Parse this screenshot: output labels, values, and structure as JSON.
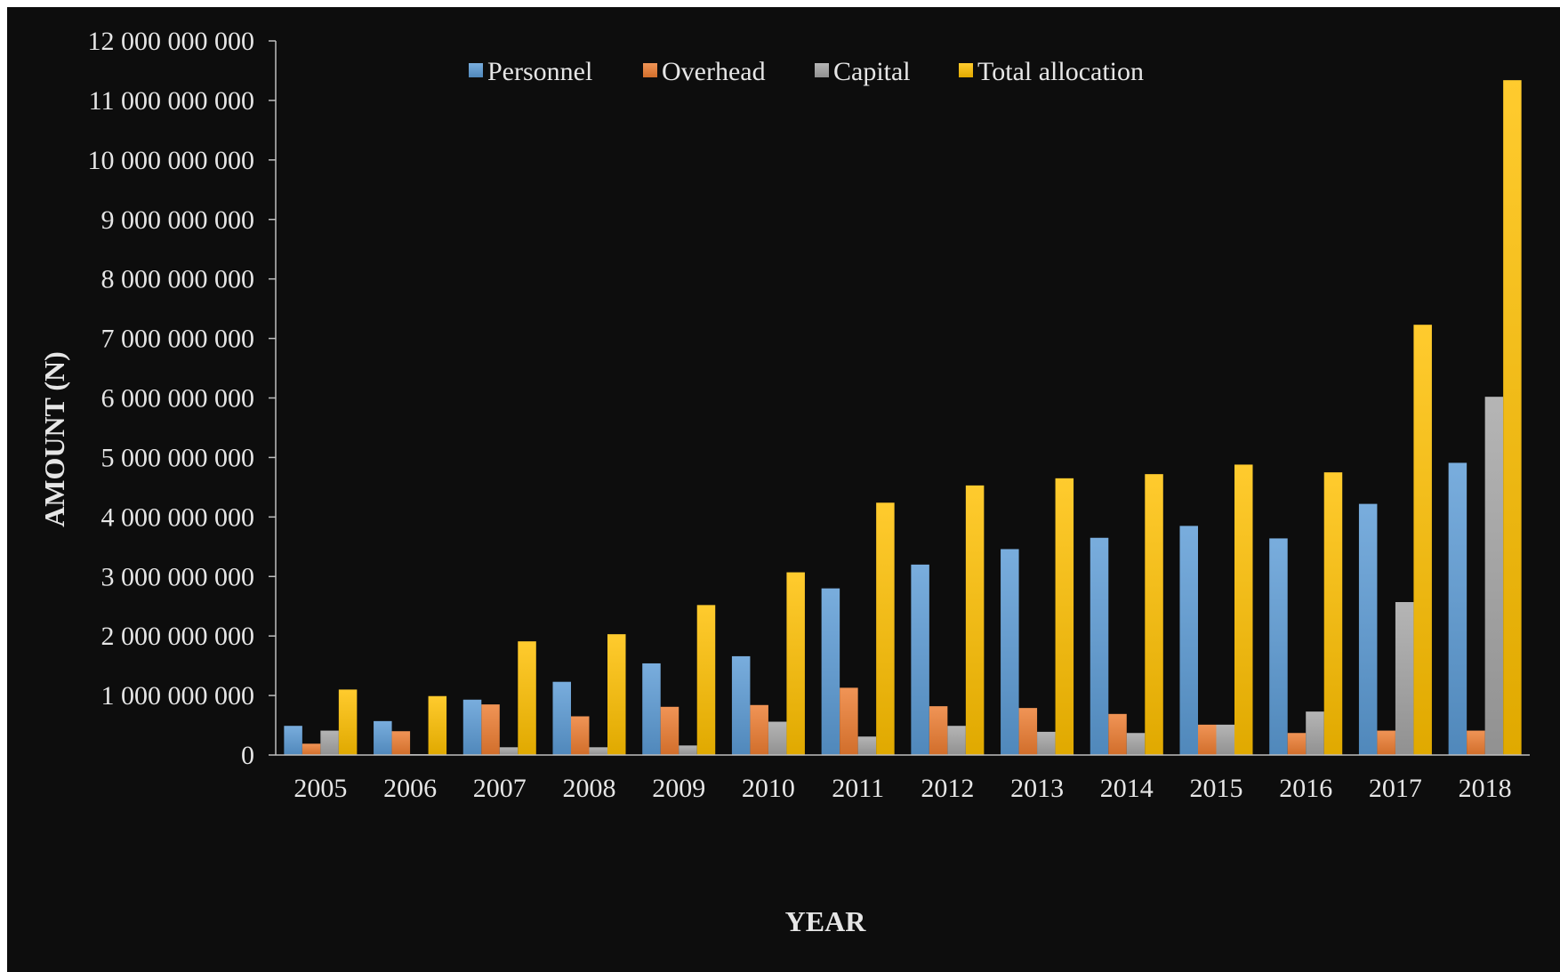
{
  "chart_data": {
    "type": "bar",
    "xlabel": "YEAR",
    "ylabel": "AMOUNT (N)",
    "ylim": [
      0,
      12000000000
    ],
    "y_ticks": [
      0,
      1000000000,
      2000000000,
      3000000000,
      4000000000,
      5000000000,
      6000000000,
      7000000000,
      8000000000,
      9000000000,
      10000000000,
      11000000000,
      12000000000
    ],
    "y_tick_labels": [
      "0",
      "1 000 000 000",
      "2 000 000 000",
      "3 000 000 000",
      "4 000 000 000",
      "5 000 000 000",
      "6 000 000 000",
      "7 000 000 000",
      "8 000 000 000",
      "9 000 000 000",
      "10 000 000 000",
      "11 000 000 000",
      "12 000 000 000"
    ],
    "categories": [
      "2005",
      "2006",
      "2007",
      "2008",
      "2009",
      "2010",
      "2011",
      "2012",
      "2013",
      "2014",
      "2015",
      "2016",
      "2017",
      "2018"
    ],
    "grid": false,
    "legend_position": "top-center",
    "series": [
      {
        "name": "Personnel",
        "color": "#5b9bd5",
        "values": [
          490000000,
          570000000,
          930000000,
          1230000000,
          1540000000,
          1660000000,
          2800000000,
          3200000000,
          3460000000,
          3650000000,
          3850000000,
          3640000000,
          4220000000,
          4910000000
        ]
      },
      {
        "name": "Overhead",
        "color": "#ed7d31",
        "values": [
          190000000,
          400000000,
          850000000,
          650000000,
          810000000,
          840000000,
          1130000000,
          820000000,
          790000000,
          690000000,
          510000000,
          370000000,
          410000000,
          410000000
        ]
      },
      {
        "name": "Capital",
        "color": "#a5a5a5",
        "values": [
          410000000,
          15000000,
          130000000,
          130000000,
          160000000,
          560000000,
          310000000,
          490000000,
          390000000,
          370000000,
          510000000,
          730000000,
          2570000000,
          6020000000
        ]
      },
      {
        "name": "Total allocation",
        "color": "#ffc000",
        "values": [
          1100000000,
          990000000,
          1910000000,
          2030000000,
          2520000000,
          3070000000,
          4240000000,
          4530000000,
          4650000000,
          4720000000,
          4880000000,
          4750000000,
          7230000000,
          11340000000
        ]
      }
    ]
  }
}
